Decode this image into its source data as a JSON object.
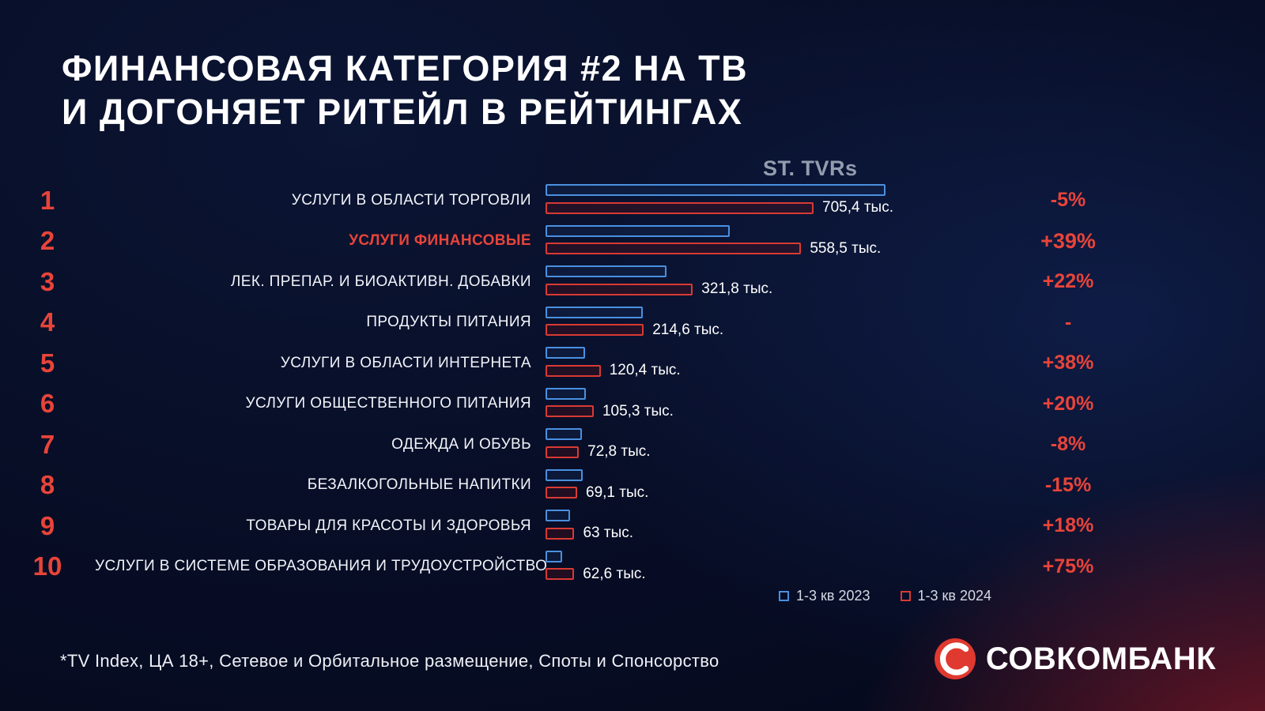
{
  "title": {
    "line1": "ФИНАНСОВАЯ КАТЕГОРИЯ #2 НА ТВ",
    "line2": "И ДОГОНЯЕТ РИТЕЙЛ В РЕЙТИНГАХ"
  },
  "chart_data": {
    "type": "bar",
    "orientation": "horizontal",
    "title": "ST. TVRs",
    "unit": "тыс.",
    "xlim": [
      0,
      760
    ],
    "grid": false,
    "legend_position": "bottom-right",
    "series_names": [
      "1-3 кв 2023",
      "1-3 кв 2024"
    ],
    "rows": [
      {
        "rank": "1",
        "label": "УСЛУГИ В ОБЛАСТИ ТОРГОВЛИ",
        "value_2023": 742.5,
        "value_2024": 705.4,
        "value_label": "705,4 тыс.",
        "change": "-5%",
        "highlight": false
      },
      {
        "rank": "2",
        "label": "УСЛУГИ ФИНАНСОВЫЕ",
        "value_2023": 401.8,
        "value_2024": 558.5,
        "value_label": "558,5 тыс.",
        "change": "+39%",
        "highlight": true
      },
      {
        "rank": "3",
        "label": "ЛЕК. ПРЕПАР. И БИОАКТИВН. ДОБАВКИ",
        "value_2023": 263.8,
        "value_2024": 321.8,
        "value_label": "321,8 тыс.",
        "change": "+22%",
        "highlight": false
      },
      {
        "rank": "4",
        "label": "ПРОДУКТЫ ПИТАНИЯ",
        "value_2023": 212.6,
        "value_2024": 214.6,
        "value_label": "214,6 тыс.",
        "change": "-",
        "highlight": false
      },
      {
        "rank": "5",
        "label": "УСЛУГИ В ОБЛАСТИ ИНТЕРНЕТА",
        "value_2023": 87.2,
        "value_2024": 120.4,
        "value_label": "120,4 тыс.",
        "change": "+38%",
        "highlight": false
      },
      {
        "rank": "6",
        "label": "УСЛУГИ ОБЩЕСТВЕННОГО ПИТАНИЯ",
        "value_2023": 87.8,
        "value_2024": 105.3,
        "value_label": "105,3 тыс.",
        "change": "+20%",
        "highlight": false
      },
      {
        "rank": "7",
        "label": "ОДЕЖДА И ОБУВЬ",
        "value_2023": 79.1,
        "value_2024": 72.8,
        "value_label": "72,8 тыс.",
        "change": "-8%",
        "highlight": false
      },
      {
        "rank": "8",
        "label": "БЕЗАЛКОГОЛЬНЫЕ НАПИТКИ",
        "value_2023": 81.3,
        "value_2024": 69.1,
        "value_label": "69,1 тыс.",
        "change": "-15%",
        "highlight": false
      },
      {
        "rank": "9",
        "label": "ТОВАРЫ ДЛЯ КРАСОТЫ И ЗДОРОВЬЯ",
        "value_2023": 53.4,
        "value_2024": 63.0,
        "value_label": "63 тыс.",
        "change": "+18%",
        "highlight": false
      },
      {
        "rank": "10",
        "label": "УСЛУГИ В СИСТЕМЕ ОБРАЗОВАНИЯ И ТРУДОУСТРОЙСТВО",
        "value_2023": 35.8,
        "value_2024": 62.6,
        "value_label": "62,6 тыс.",
        "change": "+75%",
        "highlight": false
      }
    ],
    "legend": [
      {
        "label": "1-3 кв 2023",
        "color": "#4a90e0"
      },
      {
        "label": "1-3 кв 2024",
        "color": "#d83a34"
      }
    ],
    "colors": {
      "accent_red": "#e8443a",
      "bar_2023_border": "#4a90e0",
      "bar_2024_border": "#d83a34",
      "background": "#070d25",
      "chart_title_gray": "#939cae"
    }
  },
  "footnote": "*TV Index, ЦА 18+, Сетевое и Орбитальное размещение, Споты и Спонсорство",
  "logo": {
    "text": "СОВКОМБАНК",
    "color": "#e0392f"
  }
}
